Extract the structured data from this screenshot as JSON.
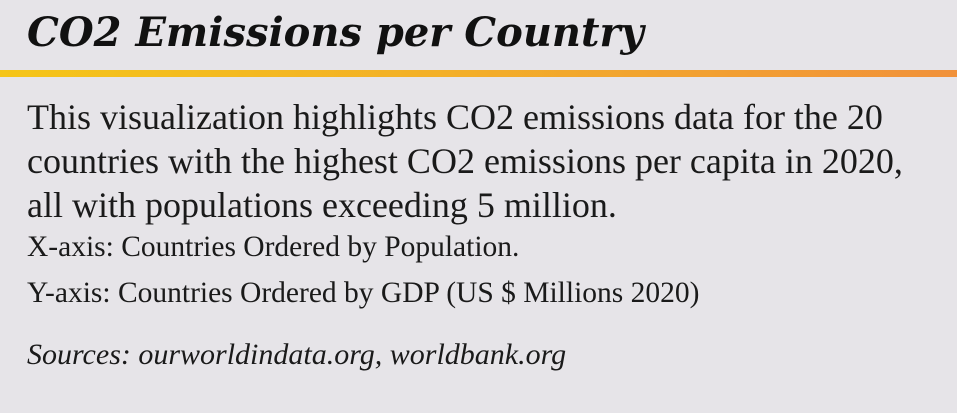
{
  "title": "CO2 Emissions per Country",
  "description": "This visualization highlights CO2 emissions data for the 20 countries with the highest CO2 emissions per capita in 2020,  all with populations exceeding 5 million.",
  "x_axis_note": "X-axis: Countries Ordered by Population.",
  "y_axis_note": "Y-axis: Countries Ordered by GDP (US $ Millions 2020)",
  "sources": "Sources: ourworldindata.org, worldbank.org",
  "colors": {
    "background": "#e6e4e8",
    "rule_start": "#f5c518",
    "rule_end": "#f1913a"
  }
}
